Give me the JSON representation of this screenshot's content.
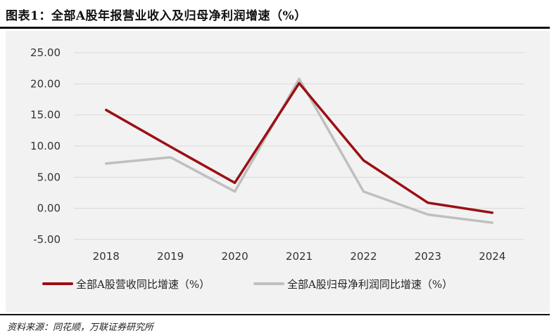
{
  "header": {
    "title": "图表1：全部A股年报营业收入及归母净利润增速（%）"
  },
  "footer": {
    "source": "资料来源：同花顺，万联证券研究所"
  },
  "chart_data": {
    "type": "line",
    "title": "",
    "xlabel": "",
    "ylabel": "",
    "ylim": [
      -5,
      25
    ],
    "grid": true,
    "legend_position": "bottom",
    "x": [
      "2018",
      "2019",
      "2020",
      "2021",
      "2022",
      "2023",
      "2024"
    ],
    "y_ticks": [
      "25.00",
      "20.00",
      "15.00",
      "10.00",
      "5.00",
      "0.00",
      "-5.00"
    ],
    "y_tick_values": [
      25,
      20,
      15,
      10,
      5,
      0,
      -5
    ],
    "series": [
      {
        "name": "全部A股营收同比增速（%）",
        "color": "#9b0f14",
        "values": [
          15.8,
          9.9,
          4.1,
          20.1,
          7.7,
          0.9,
          -0.7
        ]
      },
      {
        "name": "全部A股归母净利润同比增速（%）",
        "color": "#bfbfbf",
        "values": [
          7.2,
          8.2,
          2.7,
          20.8,
          2.7,
          -1.0,
          -2.3
        ]
      }
    ]
  }
}
